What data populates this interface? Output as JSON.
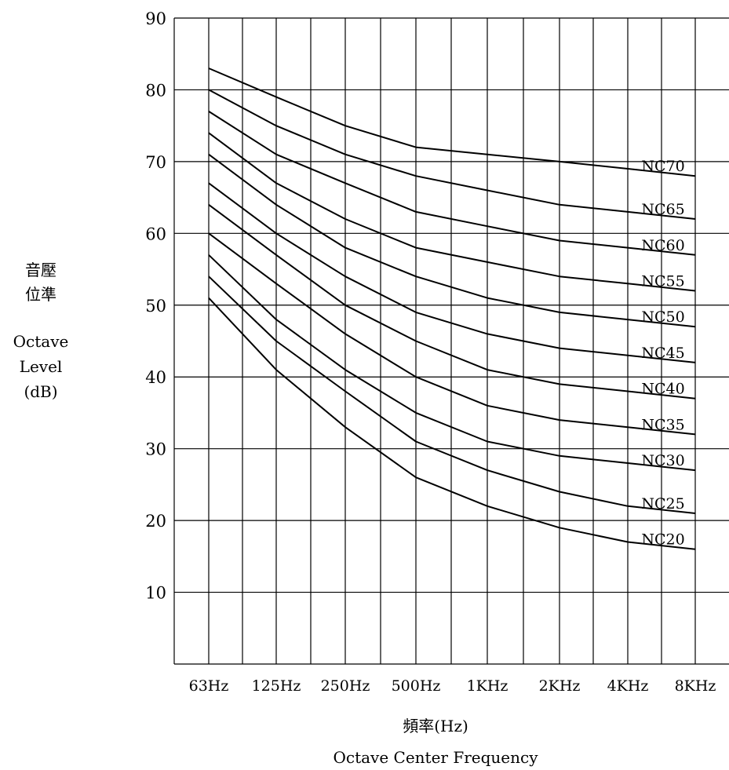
{
  "chart_data": {
    "type": "line",
    "xlabel_zh": "頻率(Hz)",
    "xlabel_en": "Octave Center Frequency",
    "ylabel_zh_line1": "音壓",
    "ylabel_zh_line2": "位準",
    "ylabel_en_line1": "Octave",
    "ylabel_en_line2": "Level",
    "ylabel_en_line3": "(dB)",
    "ylim": [
      0,
      90
    ],
    "yticks": [
      10,
      20,
      30,
      40,
      50,
      60,
      70,
      80,
      90
    ],
    "categories": [
      "63Hz",
      "125Hz",
      "250Hz",
      "500Hz",
      "1KHz",
      "2KHz",
      "4KHz",
      "8KHz"
    ],
    "grid": true,
    "series": [
      {
        "name": "NC70",
        "values": [
          83,
          79,
          75,
          72,
          71,
          70,
          69,
          68
        ]
      },
      {
        "name": "NC65",
        "values": [
          80,
          75,
          71,
          68,
          66,
          64,
          63,
          62
        ]
      },
      {
        "name": "NC60",
        "values": [
          77,
          71,
          67,
          63,
          61,
          59,
          58,
          57
        ]
      },
      {
        "name": "NC55",
        "values": [
          74,
          67,
          62,
          58,
          56,
          54,
          53,
          52
        ]
      },
      {
        "name": "NC50",
        "values": [
          71,
          64,
          58,
          54,
          51,
          49,
          48,
          47
        ]
      },
      {
        "name": "NC45",
        "values": [
          67,
          60,
          54,
          49,
          46,
          44,
          43,
          42
        ]
      },
      {
        "name": "NC40",
        "values": [
          64,
          57,
          50,
          45,
          41,
          39,
          38,
          37
        ]
      },
      {
        "name": "NC35",
        "values": [
          60,
          53,
          46,
          40,
          36,
          34,
          33,
          32
        ]
      },
      {
        "name": "NC30",
        "values": [
          57,
          48,
          41,
          35,
          31,
          29,
          28,
          27
        ]
      },
      {
        "name": "NC25",
        "values": [
          54,
          45,
          38,
          31,
          27,
          24,
          22,
          21
        ]
      },
      {
        "name": "NC20",
        "values": [
          51,
          41,
          33,
          26,
          22,
          19,
          17,
          16
        ]
      }
    ]
  }
}
